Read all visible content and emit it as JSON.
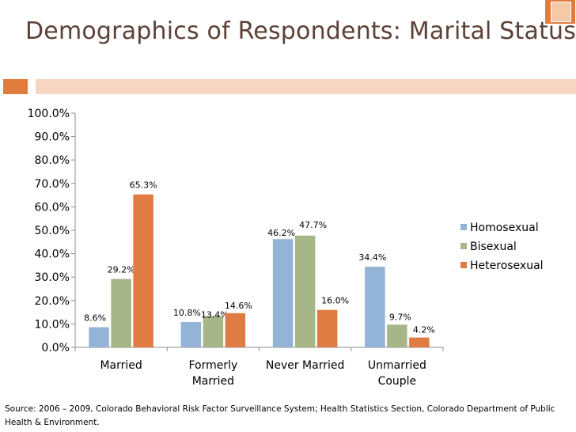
{
  "slide": {
    "title": "Demographics of Respondents: Marital Status",
    "source": "Source: 2006 – 2009, Colorado Behavioral Risk Factor Surveillance System; Health Statistics Section, Colorado Department of Public Health & Environment."
  },
  "colors": {
    "accent": "#e27c3c",
    "title": "#5b4137",
    "rule_light": "#f6d6c2"
  },
  "chart_data": {
    "type": "bar",
    "title": "",
    "xlabel": "",
    "ylabel": "",
    "ylim": [
      0,
      100
    ],
    "yticks": [
      0,
      10,
      20,
      30,
      40,
      50,
      60,
      70,
      80,
      90,
      100
    ],
    "ytick_labels": [
      "0.0%",
      "10.0%",
      "20.0%",
      "30.0%",
      "40.0%",
      "50.0%",
      "60.0%",
      "70.0%",
      "80.0%",
      "90.0%",
      "100.0%"
    ],
    "categories": [
      [
        "Married"
      ],
      [
        "Formerly",
        "Married"
      ],
      [
        "Never Married"
      ],
      [
        "Unmarried",
        "Couple"
      ]
    ],
    "series": [
      {
        "name": "Homosexual",
        "color": "#93b3d7",
        "values": [
          8.6,
          10.8,
          46.2,
          34.4
        ],
        "labels": [
          "8.6%",
          "10.8%",
          "46.2%",
          "34.4%"
        ]
      },
      {
        "name": "Bisexual",
        "color": "#a7b689",
        "values": [
          29.2,
          13.4,
          47.7,
          9.7
        ],
        "labels": [
          "29.2%",
          "13.4%",
          "47.7%",
          "9.7%"
        ]
      },
      {
        "name": "Heterosexual",
        "color": "#df7c43",
        "values": [
          65.3,
          14.6,
          16.0,
          4.2
        ],
        "labels": [
          "65.3%",
          "14.6%",
          "16.0%",
          "4.2%"
        ]
      }
    ],
    "legend_position": "right",
    "grid": false
  }
}
